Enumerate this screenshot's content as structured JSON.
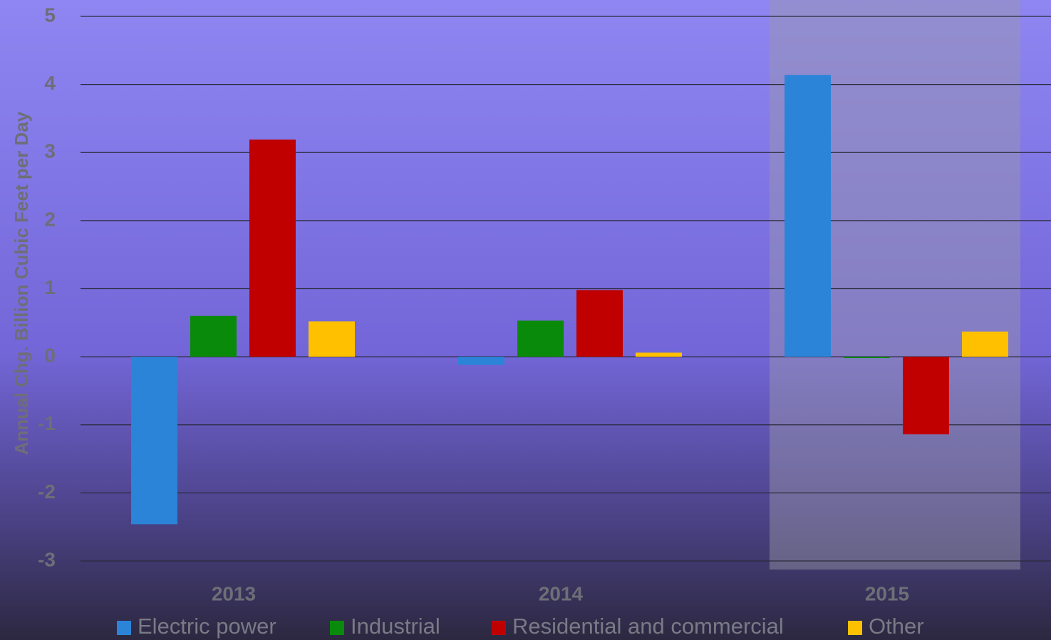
{
  "chart_data": {
    "type": "bar",
    "y_label": "Annual Chg. Billion Cubic Feet per Day",
    "categories": [
      "2013",
      "2014",
      "2015"
    ],
    "series": [
      {
        "name": "Electric power",
        "color": "#2b84d8",
        "values": [
          -2.46,
          -0.12,
          4.14
        ]
      },
      {
        "name": "Industrial",
        "color": "#0a8a0a",
        "values": [
          0.6,
          0.53,
          -0.02
        ]
      },
      {
        "name": "Residential and commercial",
        "color": "#c00000",
        "values": [
          3.19,
          0.98,
          -1.14
        ]
      },
      {
        "name": "Other",
        "color": "#ffc000",
        "values": [
          0.52,
          0.06,
          0.37
        ]
      }
    ],
    "ylim": [
      -3,
      5
    ],
    "yticks": [
      -3,
      -2,
      -1,
      0,
      1,
      2,
      3,
      4,
      5
    ],
    "grid": true,
    "legend": "bottom"
  }
}
